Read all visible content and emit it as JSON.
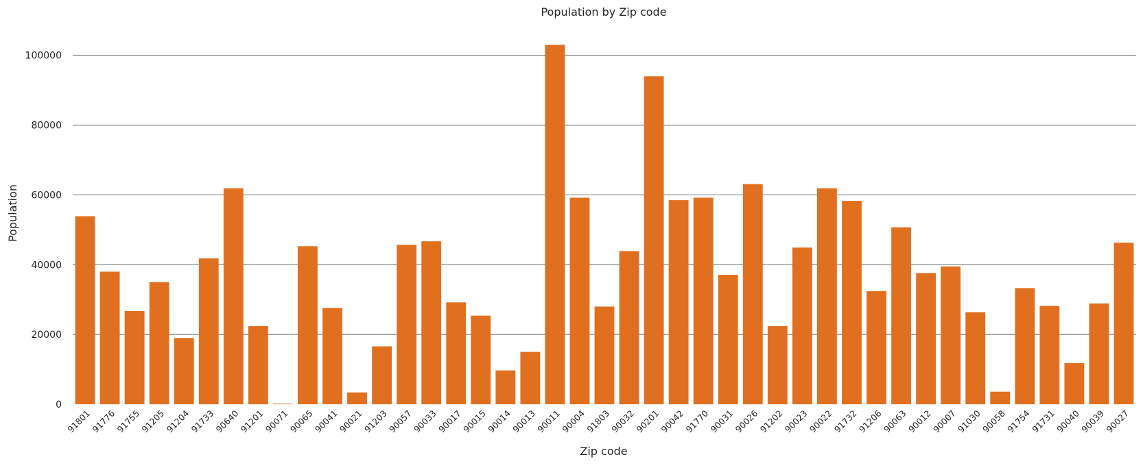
{
  "chart_data": {
    "type": "bar",
    "title": "Population by Zip code",
    "xlabel": "Zip code",
    "ylabel": "Population",
    "ylim": [
      0,
      108000
    ],
    "yticks": [
      0,
      20000,
      40000,
      60000,
      80000,
      100000
    ],
    "grid": "horizontal",
    "bar_color": "#e07020",
    "grid_color": "#808080",
    "categories": [
      "91801",
      "91776",
      "91755",
      "91205",
      "91204",
      "91733",
      "90640",
      "91201",
      "90071",
      "90065",
      "90041",
      "90021",
      "91203",
      "90057",
      "90033",
      "90017",
      "90015",
      "90014",
      "90013",
      "90011",
      "90004",
      "91803",
      "90032",
      "90201",
      "90042",
      "91770",
      "90031",
      "90026",
      "91202",
      "90023",
      "90022",
      "91732",
      "91206",
      "90063",
      "90012",
      "90007",
      "91030",
      "90058",
      "91754",
      "91731",
      "90040",
      "90039",
      "90027"
    ],
    "values": [
      53900,
      38000,
      26700,
      35000,
      19000,
      41800,
      61900,
      22400,
      200,
      45300,
      27600,
      3400,
      16600,
      45700,
      46700,
      29200,
      25400,
      9700,
      15000,
      103000,
      59200,
      28000,
      43900,
      94000,
      58500,
      59200,
      37100,
      63100,
      22400,
      44900,
      61900,
      58300,
      32400,
      50700,
      37600,
      39500,
      26400,
      3600,
      33300,
      28200,
      11800,
      28900,
      46300
    ]
  }
}
